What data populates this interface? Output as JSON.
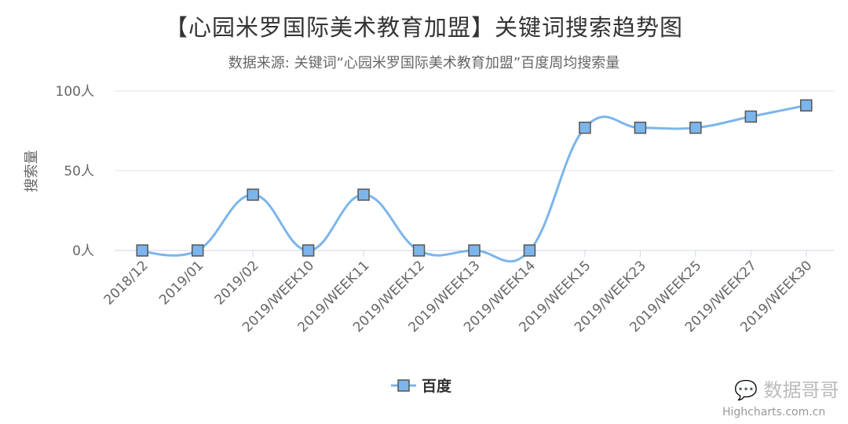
{
  "chart_data": {
    "type": "line",
    "title": "【心园米罗国际美术教育加盟】关键词搜索趋势图",
    "subtitle": "数据来源: 关键词“心园米罗国际美术教育加盟”百度周均搜索量",
    "ylabel": "搜索量",
    "xlabel": "",
    "ylim": [
      0,
      100
    ],
    "yticks": [
      "0人",
      "50人",
      "100人"
    ],
    "grid": true,
    "legend_position": "bottom-center",
    "categories": [
      "2018/12",
      "2019/01",
      "2019/02",
      "2019/WEEK10",
      "2019/WEEK11",
      "2019/WEEK12",
      "2019/WEEK13",
      "2019/WEEK14",
      "2019/WEEK15",
      "2019/WEEK23",
      "2019/WEEK25",
      "2019/WEEK27",
      "2019/WEEK30"
    ],
    "series": [
      {
        "name": "百度",
        "values": [
          0,
          0,
          35,
          0,
          35,
          0,
          0,
          0,
          77,
          77,
          77,
          84,
          91
        ],
        "color": "#7cb5ec",
        "marker": "square",
        "smooth": true
      }
    ]
  },
  "watermark": "数据哥哥",
  "credit": "Highcharts.com.cn"
}
